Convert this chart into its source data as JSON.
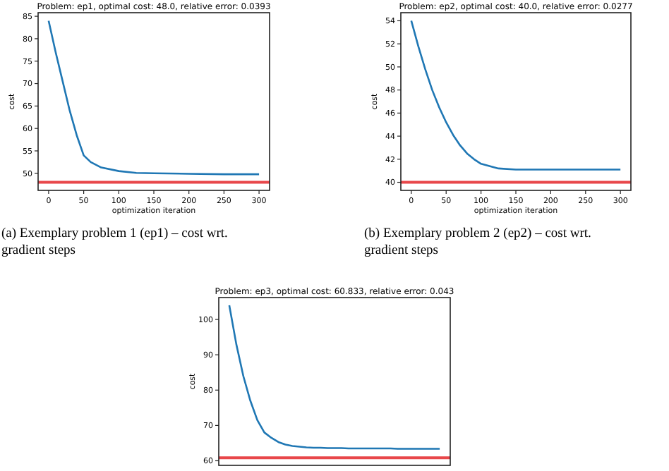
{
  "chart_data": [
    {
      "type": "line",
      "title": "Problem: ep1, optimal cost:  48.0,  relative error:    0.0393",
      "xlabel": "optimization iteration",
      "ylabel": "cost",
      "xlim": [
        -15,
        315
      ],
      "xticks": [
        0,
        50,
        100,
        150,
        200,
        250,
        300
      ],
      "ylim": [
        46.2,
        85.8
      ],
      "yticks": [
        50,
        55,
        60,
        65,
        70,
        75,
        80,
        85
      ],
      "series": [
        {
          "color": "#1f77b4",
          "x": [
            0,
            10,
            20,
            30,
            40,
            50,
            60,
            75,
            100,
            125,
            150,
            200,
            250,
            300
          ],
          "values": [
            84,
            77,
            70.5,
            64,
            58.5,
            54,
            52.5,
            51.3,
            50.5,
            50.1,
            50,
            49.9,
            49.8,
            49.8
          ]
        }
      ],
      "ref_lines": [
        {
          "axis": "y",
          "value": 48.0,
          "color": "#e8474a"
        }
      ],
      "annotations": [
        "(a) Exemplary problem 1 (ep1) – cost wrt. gradient steps"
      ],
      "grid": false,
      "marker": "none",
      "line_style": "solid"
    },
    {
      "type": "line",
      "title": "Problem: ep2, optimal cost:  40.0,  relative error:    0.0277",
      "xlabel": "optimization iteration",
      "ylabel": "cost",
      "xlim": [
        -15,
        315
      ],
      "xticks": [
        0,
        50,
        100,
        150,
        200,
        250,
        300
      ],
      "ylim": [
        39.3,
        54.7
      ],
      "yticks": [
        40,
        42,
        44,
        46,
        48,
        50,
        52,
        54
      ],
      "series": [
        {
          "color": "#1f77b4",
          "x": [
            0,
            10,
            20,
            30,
            40,
            50,
            60,
            70,
            80,
            90,
            100,
            125,
            150,
            200,
            300
          ],
          "values": [
            54,
            51.8,
            49.8,
            48,
            46.5,
            45.2,
            44.1,
            43.2,
            42.5,
            42,
            41.6,
            41.2,
            41.1,
            41.1,
            41.1
          ]
        }
      ],
      "ref_lines": [
        {
          "axis": "y",
          "value": 40.0,
          "color": "#e8474a"
        }
      ],
      "annotations": [
        "(b) Exemplary problem 2 (ep2) – cost wrt. gradient steps"
      ],
      "grid": false,
      "marker": "none",
      "line_style": "solid"
    },
    {
      "type": "line",
      "title": "Problem: ep3, optimal cost:  60.833,  relative error:    0.043",
      "ylabel": "cost",
      "categories": [
        null,
        null,
        null,
        null,
        null,
        null,
        null,
        null,
        null,
        null,
        null,
        null,
        null,
        null,
        null,
        null,
        null,
        null,
        null,
        null,
        null,
        null,
        null,
        null,
        null,
        null,
        null,
        null,
        null,
        null,
        null
      ],
      "ylim": [
        58.7,
        106.2
      ],
      "yticks": [
        60,
        70,
        80,
        90,
        100
      ],
      "tick_labels": "y",
      "series": [
        {
          "color": "#1f77b4",
          "values": [
            104,
            93,
            84,
            77,
            71.5,
            68,
            66.5,
            65.3,
            64.6,
            64.2,
            64,
            63.8,
            63.7,
            63.7,
            63.6,
            63.6,
            63.6,
            63.5,
            63.5,
            63.5,
            63.5,
            63.5,
            63.5,
            63.5,
            63.4,
            63.4,
            63.4,
            63.4,
            63.4,
            63.4,
            63.4
          ]
        }
      ],
      "ref_lines": [
        {
          "axis": "y",
          "value": 60.833,
          "color": "#e8474a"
        }
      ],
      "grid": false,
      "marker": "none",
      "line_style": "solid"
    }
  ]
}
